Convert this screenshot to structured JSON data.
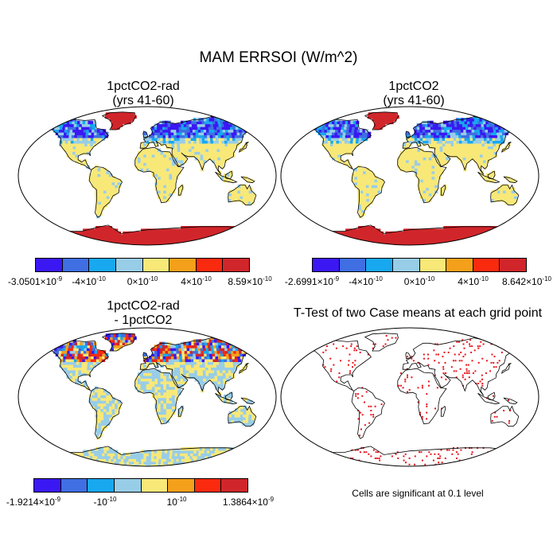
{
  "title": "MAM ERRSOI (W/m^2)",
  "panels": [
    {
      "id": "p1",
      "title_line1": "1pctCO2-rad",
      "title_line2": "(yrs 41-60)",
      "colorbar": {
        "colors": [
          "#3b18f3",
          "#3f6fe2",
          "#17a8f0",
          "#98cde8",
          "#f8e878",
          "#f5a01a",
          "#fa2a0f",
          "#d0262b"
        ],
        "labels": [
          {
            "text": "-3.0501×10",
            "exp": "-9"
          },
          {
            "text": "-4×10",
            "exp": "-10"
          },
          {
            "text": "0×10",
            "exp": "-10"
          },
          {
            "text": "4×10",
            "exp": "-10"
          },
          {
            "text": "8.59×10",
            "exp": "-10"
          }
        ]
      }
    },
    {
      "id": "p2",
      "title_line1": "1pctCO2",
      "title_line2": "(yrs 41-60)",
      "colorbar": {
        "colors": [
          "#3b18f3",
          "#3f6fe2",
          "#17a8f0",
          "#98cde8",
          "#f8e878",
          "#f5a01a",
          "#fa2a0f",
          "#d0262b"
        ],
        "labels": [
          {
            "text": "-2.6991×10",
            "exp": "-9"
          },
          {
            "text": "-4×10",
            "exp": "-10"
          },
          {
            "text": "0×10",
            "exp": "-10"
          },
          {
            "text": "4×10",
            "exp": "-10"
          },
          {
            "text": "8.642×10",
            "exp": "-10"
          }
        ]
      }
    },
    {
      "id": "p3",
      "title_line1": "1pctCO2-rad",
      "title_line2": "- 1pctCO2",
      "colorbar": {
        "colors": [
          "#3b18f3",
          "#3f6fe2",
          "#17a8f0",
          "#98cde8",
          "#f8e878",
          "#f5a01a",
          "#fa2a0f",
          "#d0262b"
        ],
        "labels": [
          {
            "text": "-1.9214×10",
            "exp": "-9"
          },
          {
            "text": "-10",
            "exp": "-10"
          },
          {
            "text": "10",
            "exp": "-10"
          },
          {
            "text": "1.3864×10",
            "exp": "-9"
          }
        ]
      }
    },
    {
      "id": "p4",
      "title_line1": "T-Test of two Case means at each grid point",
      "note": "Cells are significant at 0.1 level"
    }
  ],
  "colors": {
    "land_default": "#f8e878",
    "cold_blue": "#3b18f3",
    "mid_blue": "#3f6fe2",
    "light_blue": "#98cde8",
    "cyan": "#17a8f0",
    "red": "#d0262b",
    "significant": "#e8141c",
    "diff_land": "#c8dca0"
  }
}
